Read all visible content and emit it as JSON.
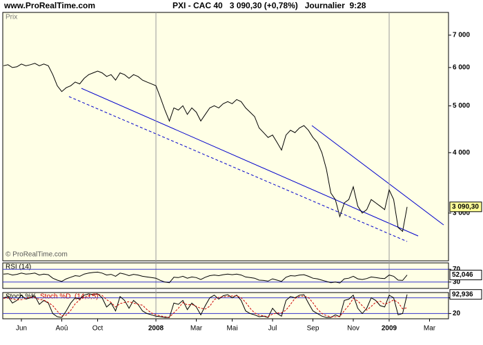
{
  "header": {
    "site": "www.ProRealTime.com",
    "title": "PXI - CAC 40   3 090,30 (+0,78%)   Journalier  9:28"
  },
  "chart_data": [
    {
      "type": "line",
      "title": "Prix",
      "credit": "© ProRealTime.com",
      "log_scale": true,
      "color": "#000000",
      "categories": [
        null,
        null,
        null,
        null,
        "Jun",
        null,
        null,
        null,
        null,
        null,
        null,
        null,
        null,
        "Aoû",
        null,
        null,
        null,
        null,
        null,
        null,
        null,
        "Oct",
        null,
        null,
        null,
        null,
        null,
        null,
        null,
        null,
        null,
        null,
        null,
        null,
        "2008",
        null,
        null,
        null,
        null,
        null,
        null,
        null,
        null,
        "Mar",
        null,
        null,
        null,
        null,
        null,
        null,
        null,
        "Mai",
        null,
        null,
        null,
        null,
        null,
        null,
        null,
        null,
        "Jul",
        null,
        null,
        null,
        null,
        null,
        null,
        null,
        null,
        "Sep",
        null,
        null,
        null,
        null,
        null,
        null,
        null,
        null,
        "Nov",
        null,
        null,
        null,
        null,
        null,
        null,
        null,
        "2009",
        null,
        null,
        null,
        null,
        null,
        null,
        null,
        null,
        "Mar",
        null
      ],
      "values": [
        6050,
        6080,
        6000,
        6020,
        6100,
        6050,
        6080,
        6120,
        6050,
        6100,
        6050,
        5800,
        5500,
        5350,
        5450,
        5500,
        5600,
        5550,
        5700,
        5800,
        5850,
        5900,
        5850,
        5750,
        5800,
        5650,
        5850,
        5800,
        5700,
        5800,
        5750,
        5650,
        5600,
        5550,
        5500,
        5200,
        4900,
        4650,
        4950,
        4900,
        5000,
        4800,
        4950,
        4850,
        4650,
        4800,
        4950,
        5000,
        4950,
        5050,
        5100,
        5050,
        5150,
        5100,
        4950,
        4850,
        4750,
        4500,
        4400,
        4300,
        4350,
        4200,
        4050,
        4350,
        4450,
        4400,
        4500,
        4550,
        4450,
        4300,
        4200,
        4000,
        3700,
        3300,
        3200,
        2950,
        3150,
        3200,
        3400,
        3100,
        3000,
        3050,
        3200,
        3150,
        3100,
        3050,
        3350,
        3200,
        2800,
        2750,
        3090.3,
        null,
        null,
        null,
        null,
        null,
        null
      ],
      "ylim": [
        2390,
        7800
      ],
      "yticks": [
        {
          "value": 3000,
          "label": "3 000"
        },
        {
          "value": 4000,
          "label": "4 000"
        },
        {
          "value": 5000,
          "label": "5 000"
        },
        {
          "value": 6000,
          "label": "6 000"
        },
        {
          "value": 7000,
          "label": "7 000"
        }
      ],
      "last_value": {
        "value": 3090.3,
        "label": "3 090,30"
      }
    },
    {
      "type": "line",
      "title": "RSI (14)",
      "color": "#000000",
      "values": [
        55,
        56,
        52,
        54,
        58,
        55,
        56,
        58,
        52,
        55,
        53,
        42,
        36,
        32,
        40,
        45,
        50,
        48,
        55,
        58,
        60,
        61,
        58,
        52,
        54,
        48,
        58,
        55,
        50,
        54,
        52,
        48,
        46,
        44,
        42,
        35,
        30,
        28,
        45,
        44,
        48,
        42,
        46,
        44,
        38,
        45,
        50,
        52,
        50,
        53,
        55,
        53,
        55,
        52,
        46,
        44,
        42,
        36,
        35,
        33,
        40,
        36,
        32,
        45,
        50,
        49,
        52,
        53,
        48,
        42,
        40,
        36,
        32,
        28,
        30,
        27,
        40,
        42,
        48,
        40,
        38,
        41,
        46,
        44,
        42,
        41,
        52,
        48,
        36,
        35,
        52.046,
        null,
        null,
        null,
        null,
        null,
        null
      ],
      "ylim": [
        10,
        90
      ],
      "yticks": [
        30,
        70
      ],
      "last_value": {
        "value": 52.046,
        "label": "52,046"
      }
    },
    {
      "type": "line",
      "title": "(14,3,5)",
      "series": [
        {
          "name": "Stoch %K",
          "color": "#000000",
          "values": [
            80,
            85,
            60,
            70,
            90,
            75,
            80,
            88,
            55,
            70,
            60,
            20,
            8,
            5,
            30,
            60,
            80,
            75,
            90,
            95,
            92,
            95,
            80,
            45,
            60,
            30,
            85,
            70,
            40,
            70,
            55,
            30,
            20,
            15,
            10,
            8,
            5,
            5,
            60,
            55,
            70,
            35,
            60,
            45,
            15,
            50,
            80,
            90,
            75,
            88,
            92,
            80,
            90,
            70,
            30,
            20,
            15,
            8,
            10,
            5,
            40,
            20,
            10,
            70,
            85,
            80,
            90,
            92,
            60,
            30,
            20,
            10,
            5,
            5,
            15,
            8,
            70,
            75,
            90,
            40,
            20,
            40,
            80,
            70,
            50,
            45,
            90,
            80,
            15,
            20,
            92.936,
            null,
            null,
            null,
            null,
            null,
            null
          ]
        },
        {
          "name": "Stoch %D",
          "color": "#cc0000",
          "values": [
            78,
            80,
            75,
            72,
            73,
            78,
            82,
            81,
            74,
            71,
            62,
            50,
            29,
            11,
            14,
            32,
            57,
            72,
            82,
            87,
            92,
            94,
            89,
            73,
            62,
            45,
            58,
            62,
            65,
            60,
            55,
            52,
            35,
            22,
            15,
            11,
            8,
            6,
            23,
            40,
            62,
            53,
            55,
            47,
            40,
            37,
            48,
            73,
            82,
            84,
            85,
            87,
            87,
            80,
            63,
            40,
            22,
            14,
            11,
            8,
            18,
            22,
            23,
            33,
            55,
            78,
            85,
            87,
            81,
            61,
            37,
            20,
            12,
            7,
            8,
            9,
            31,
            51,
            78,
            68,
            50,
            33,
            47,
            63,
            67,
            55,
            62,
            72,
            62,
            38,
            42,
            null,
            null,
            null,
            null,
            null,
            null
          ]
        }
      ],
      "ylim": [
        0,
        100
      ],
      "yticks": [
        20,
        80
      ],
      "last_value": {
        "value": 92.936,
        "label": "92,936"
      }
    }
  ]
}
